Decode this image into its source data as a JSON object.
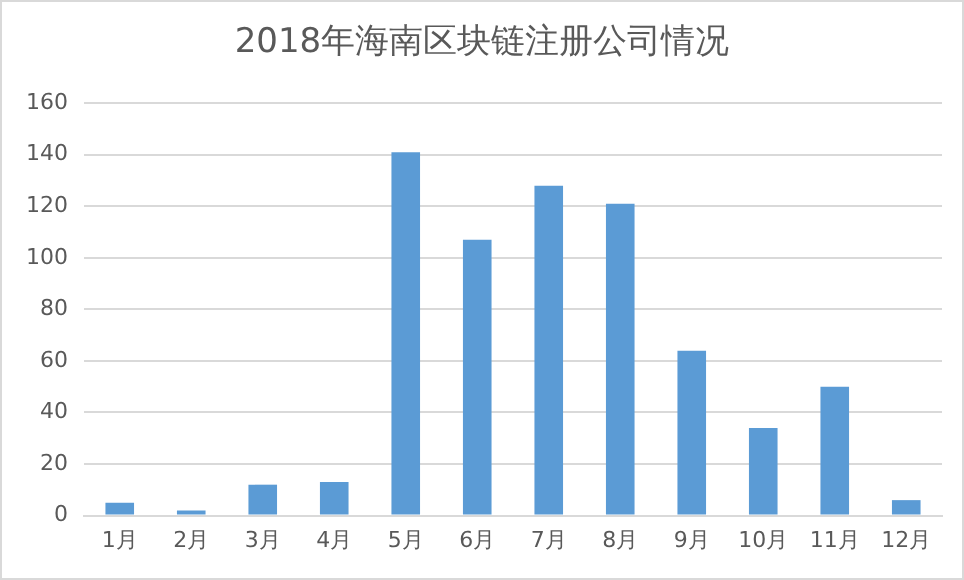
{
  "chart_data": {
    "type": "bar",
    "title": "2018年海南区块链注册公司情况",
    "categories": [
      "1月",
      "2月",
      "3月",
      "4月",
      "5月",
      "6月",
      "7月",
      "8月",
      "9月",
      "10月",
      "11月",
      "12月"
    ],
    "values": [
      5,
      2,
      12,
      13,
      141,
      107,
      128,
      121,
      64,
      34,
      50,
      6
    ],
    "color": "#5b9bd5",
    "ylim": [
      0,
      160
    ],
    "yticks": [
      0,
      20,
      40,
      60,
      80,
      100,
      120,
      140,
      160
    ],
    "grid": "y"
  }
}
